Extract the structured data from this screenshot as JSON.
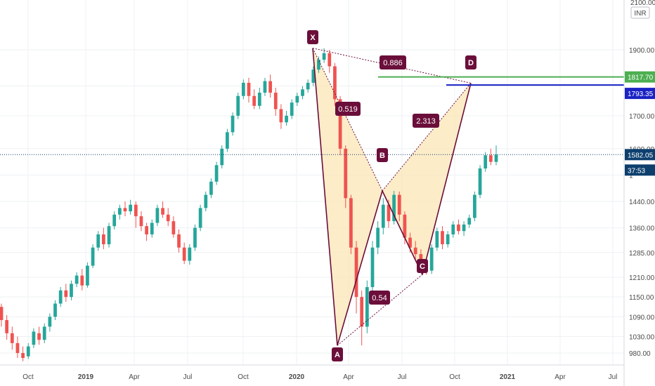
{
  "chart_data": {
    "type": "candlestick",
    "currency_label": "INR",
    "top_partial_tick": "2100.00",
    "ylim": [
      960,
      2060
    ],
    "price_ticks": [
      1900,
      1790,
      1700,
      1600,
      1520,
      1440,
      1360,
      1285,
      1210,
      1150,
      1090,
      1030,
      980
    ],
    "price_tick_labels": [
      "1900.00",
      "",
      "1700.00",
      "1600.00",
      "1",
      "1440.00",
      "1360.00",
      "1285.00",
      "1210.00",
      "1150.00",
      "1090.00",
      "1030.00",
      "980.00"
    ],
    "x_tick_labels": [
      "Oct",
      "2019",
      "Apr",
      "Jul",
      "Oct",
      "2020",
      "Apr",
      "Jul",
      "Oct",
      "2021",
      "Apr",
      "Jul"
    ],
    "x_tick_bold": [
      false,
      true,
      false,
      false,
      false,
      true,
      false,
      false,
      false,
      true,
      false,
      false
    ],
    "current_price": {
      "value": 1582.05,
      "label": "1582.05",
      "countdown": "37:53",
      "color": "#0d3f6e"
    },
    "horizontal_lines": [
      {
        "value": 1817.7,
        "label": "1817.70",
        "color": "#4caf50"
      },
      {
        "value": 1793.35,
        "label": "1793.35",
        "color": "#1a23c4"
      }
    ],
    "harmonic_pattern": {
      "fill_color": "#fbe5b6",
      "line_color": "#6b0e3a",
      "points": [
        {
          "name": "X",
          "price": 1905
        },
        {
          "name": "A",
          "price": 1003
        },
        {
          "name": "B",
          "price": 1472
        },
        {
          "name": "C",
          "price": 1218
        },
        {
          "name": "D",
          "price": 1799
        }
      ],
      "ratios": [
        {
          "label": "0.519",
          "between": "XA-AB"
        },
        {
          "label": "0.886",
          "between": "XD"
        },
        {
          "label": "2.313",
          "between": "BC-CD"
        },
        {
          "label": "0.54",
          "between": "AC"
        }
      ]
    },
    "colors": {
      "up": "#26a69a",
      "down": "#ef5350",
      "grid": "#eef0f3"
    },
    "candles": [
      [
        1120,
        1080,
        1130,
        1060
      ],
      [
        1080,
        1040,
        1095,
        1020
      ],
      [
        1040,
        1010,
        1060,
        990
      ],
      [
        1010,
        980,
        1030,
        965
      ],
      [
        980,
        965,
        1000,
        955
      ],
      [
        970,
        1000,
        1010,
        962
      ],
      [
        1005,
        1045,
        1055,
        995
      ],
      [
        1040,
        1020,
        1060,
        1005
      ],
      [
        1020,
        1060,
        1070,
        1010
      ],
      [
        1060,
        1090,
        1100,
        1045
      ],
      [
        1090,
        1130,
        1140,
        1080
      ],
      [
        1130,
        1170,
        1180,
        1120
      ],
      [
        1170,
        1150,
        1190,
        1135
      ],
      [
        1150,
        1190,
        1200,
        1140
      ],
      [
        1190,
        1215,
        1225,
        1180
      ],
      [
        1215,
        1185,
        1235,
        1170
      ],
      [
        1185,
        1245,
        1255,
        1178
      ],
      [
        1245,
        1300,
        1310,
        1238
      ],
      [
        1300,
        1340,
        1350,
        1290
      ],
      [
        1340,
        1310,
        1360,
        1295
      ],
      [
        1310,
        1365,
        1375,
        1300
      ],
      [
        1365,
        1400,
        1410,
        1355
      ],
      [
        1400,
        1420,
        1430,
        1385
      ],
      [
        1420,
        1410,
        1440,
        1395
      ],
      [
        1410,
        1430,
        1445,
        1400
      ],
      [
        1430,
        1395,
        1440,
        1360
      ],
      [
        1395,
        1365,
        1410,
        1350
      ],
      [
        1365,
        1340,
        1375,
        1320
      ],
      [
        1340,
        1375,
        1385,
        1330
      ],
      [
        1375,
        1420,
        1430,
        1365
      ],
      [
        1420,
        1400,
        1440,
        1390
      ],
      [
        1400,
        1380,
        1420,
        1365
      ],
      [
        1380,
        1340,
        1395,
        1330
      ],
      [
        1340,
        1300,
        1355,
        1285
      ],
      [
        1300,
        1260,
        1315,
        1250
      ],
      [
        1260,
        1300,
        1310,
        1248
      ],
      [
        1300,
        1360,
        1370,
        1290
      ],
      [
        1360,
        1420,
        1430,
        1350
      ],
      [
        1420,
        1460,
        1470,
        1410
      ],
      [
        1460,
        1500,
        1510,
        1450
      ],
      [
        1500,
        1550,
        1560,
        1490
      ],
      [
        1550,
        1600,
        1610,
        1540
      ],
      [
        1600,
        1650,
        1660,
        1590
      ],
      [
        1650,
        1700,
        1710,
        1640
      ],
      [
        1700,
        1760,
        1770,
        1690
      ],
      [
        1760,
        1800,
        1810,
        1750
      ],
      [
        1800,
        1760,
        1815,
        1740
      ],
      [
        1760,
        1730,
        1780,
        1720
      ],
      [
        1730,
        1770,
        1785,
        1720
      ],
      [
        1770,
        1805,
        1815,
        1760
      ],
      [
        1805,
        1770,
        1825,
        1755
      ],
      [
        1770,
        1720,
        1785,
        1700
      ],
      [
        1720,
        1680,
        1735,
        1660
      ],
      [
        1680,
        1700,
        1715,
        1670
      ],
      [
        1700,
        1740,
        1750,
        1690
      ],
      [
        1740,
        1760,
        1770,
        1730
      ],
      [
        1760,
        1780,
        1790,
        1750
      ],
      [
        1780,
        1800,
        1810,
        1770
      ],
      [
        1800,
        1840,
        1850,
        1790
      ],
      [
        1840,
        1870,
        1880,
        1830
      ],
      [
        1870,
        1890,
        1905,
        1860
      ],
      [
        1890,
        1850,
        1900,
        1830
      ],
      [
        1850,
        1750,
        1860,
        1730
      ],
      [
        1750,
        1600,
        1760,
        1580
      ],
      [
        1600,
        1450,
        1610,
        1420
      ],
      [
        1450,
        1300,
        1460,
        1280
      ],
      [
        1300,
        1150,
        1320,
        1100
      ],
      [
        1150,
        1060,
        1170,
        1003
      ],
      [
        1060,
        1180,
        1200,
        1040
      ],
      [
        1180,
        1300,
        1320,
        1160
      ],
      [
        1300,
        1360,
        1380,
        1280
      ],
      [
        1360,
        1430,
        1450,
        1340
      ],
      [
        1430,
        1380,
        1445,
        1360
      ],
      [
        1380,
        1460,
        1472,
        1370
      ],
      [
        1460,
        1400,
        1470,
        1380
      ],
      [
        1400,
        1330,
        1410,
        1310
      ],
      [
        1330,
        1300,
        1345,
        1285
      ],
      [
        1300,
        1280,
        1320,
        1265
      ],
      [
        1280,
        1250,
        1295,
        1230
      ],
      [
        1250,
        1230,
        1265,
        1218
      ],
      [
        1230,
        1300,
        1310,
        1220
      ],
      [
        1300,
        1350,
        1360,
        1290
      ],
      [
        1350,
        1310,
        1365,
        1295
      ],
      [
        1310,
        1340,
        1350,
        1300
      ],
      [
        1340,
        1370,
        1380,
        1330
      ],
      [
        1370,
        1350,
        1385,
        1340
      ],
      [
        1350,
        1370,
        1380,
        1335
      ],
      [
        1370,
        1390,
        1400,
        1360
      ],
      [
        1390,
        1460,
        1470,
        1380
      ],
      [
        1460,
        1540,
        1550,
        1450
      ],
      [
        1540,
        1580,
        1590,
        1530
      ],
      [
        1580,
        1560,
        1600,
        1550
      ],
      [
        1560,
        1582,
        1610,
        1550
      ]
    ]
  }
}
